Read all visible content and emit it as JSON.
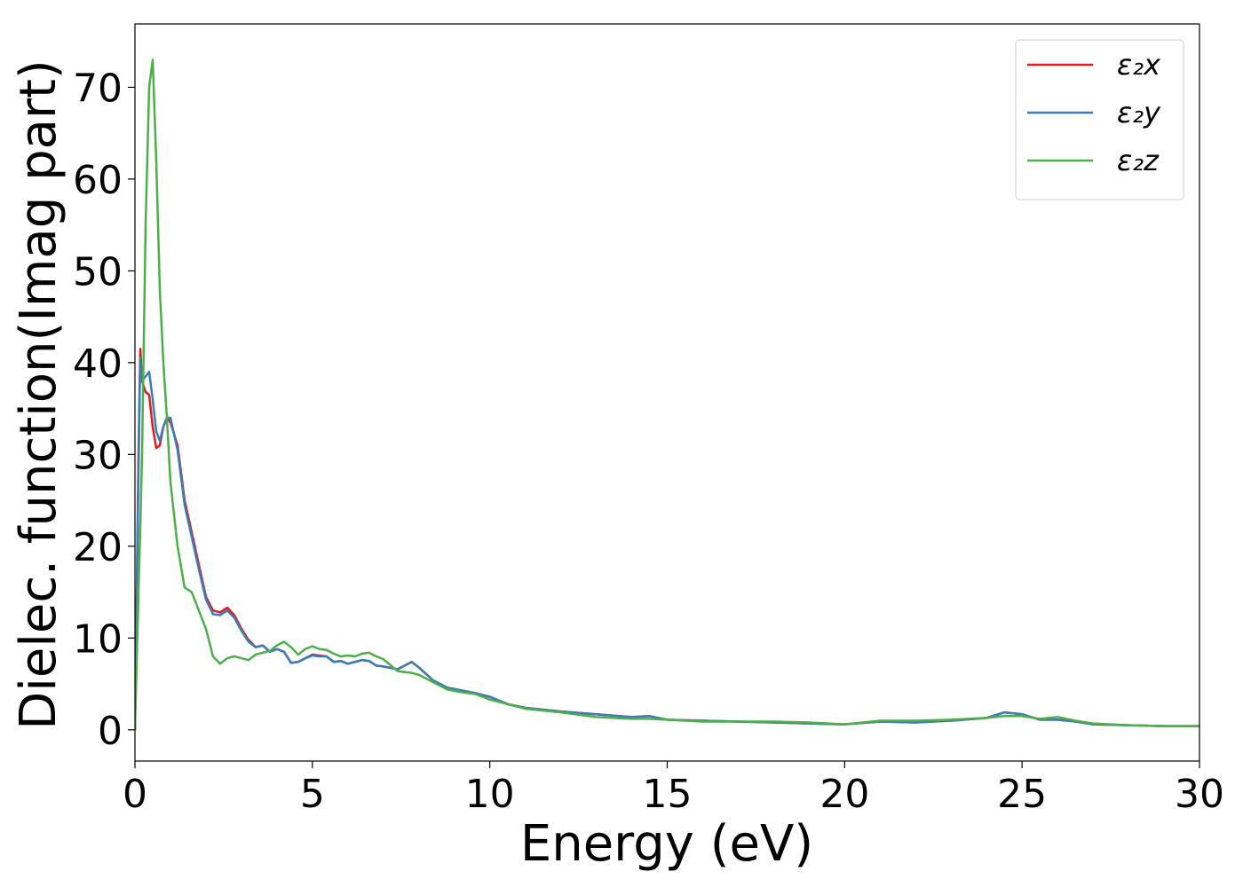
{
  "chart_data": {
    "type": "line",
    "xlabel": "Energy (eV)",
    "ylabel": "Dielec. function(Imag part)",
    "x": [
      0,
      0.1,
      0.15,
      0.2,
      0.3,
      0.4,
      0.5,
      0.6,
      0.7,
      0.8,
      0.9,
      1.0,
      1.2,
      1.4,
      1.6,
      1.8,
      2.0,
      2.2,
      2.4,
      2.6,
      2.8,
      3.0,
      3.2,
      3.4,
      3.6,
      3.8,
      4.0,
      4.2,
      4.4,
      4.6,
      4.8,
      5.0,
      5.2,
      5.4,
      5.6,
      5.8,
      6.0,
      6.2,
      6.4,
      6.6,
      6.8,
      7.0,
      7.4,
      7.8,
      8.0,
      8.4,
      8.8,
      9.2,
      9.6,
      10,
      10.5,
      11,
      12,
      13,
      14,
      14.5,
      15,
      16,
      17,
      18,
      19,
      20,
      21,
      22,
      23,
      24,
      24.5,
      25,
      25.5,
      26,
      26.5,
      27,
      28,
      29,
      30
    ],
    "series": [
      {
        "name": "ε₂x",
        "color": "#e41a1c",
        "values": [
          0,
          30,
          41.5,
          38,
          36.8,
          36.5,
          33,
          30.7,
          31,
          33,
          34,
          33.5,
          31,
          25,
          21.5,
          18,
          14.5,
          13,
          12.8,
          13.3,
          12.5,
          11,
          9.8,
          9,
          9.2,
          8.5,
          8.8,
          8.5,
          7.3,
          7.4,
          7.8,
          8.2,
          8.1,
          8,
          7.4,
          7.5,
          7.2,
          7.4,
          7.6,
          7.5,
          7.0,
          6.9,
          6.6,
          7.4,
          6.8,
          5.4,
          4.6,
          4.3,
          4.0,
          3.6,
          2.8,
          2.4,
          2.0,
          1.7,
          1.4,
          1.5,
          1.1,
          1.0,
          0.9,
          0.8,
          0.7,
          0.6,
          0.9,
          0.8,
          1.0,
          1.3,
          1.9,
          1.7,
          1.1,
          1.1,
          0.9,
          0.6,
          0.5,
          0.4,
          0.4
        ]
      },
      {
        "name": "ε₂y",
        "color": "#377eb8",
        "values": [
          0,
          28,
          40.5,
          38,
          38.5,
          39,
          36,
          32.5,
          31.5,
          33,
          34,
          34,
          30.5,
          24.5,
          21,
          17.5,
          14.2,
          12.6,
          12.5,
          13.0,
          12.2,
          10.8,
          9.6,
          9,
          9.2,
          8.5,
          8.8,
          8.5,
          7.3,
          7.4,
          7.8,
          8.1,
          8.0,
          8,
          7.4,
          7.5,
          7.2,
          7.4,
          7.6,
          7.5,
          7.0,
          6.9,
          6.6,
          7.4,
          6.8,
          5.4,
          4.6,
          4.3,
          4.0,
          3.6,
          2.8,
          2.4,
          2.0,
          1.7,
          1.4,
          1.5,
          1.1,
          1.0,
          0.9,
          0.8,
          0.7,
          0.6,
          0.9,
          0.8,
          1.0,
          1.3,
          1.9,
          1.7,
          1.1,
          1.1,
          0.9,
          0.6,
          0.5,
          0.4,
          0.4
        ]
      },
      {
        "name": "ε₂z",
        "color": "#4daf4a",
        "values": [
          0,
          15,
          22,
          30,
          55,
          70,
          73,
          62,
          48,
          40,
          34,
          27,
          20,
          15.5,
          15,
          13,
          11,
          8,
          7.2,
          7.8,
          8.0,
          7.8,
          7.6,
          8.2,
          8.4,
          8.6,
          9.2,
          9.6,
          9.0,
          8.2,
          8.8,
          9.1,
          8.8,
          8.7,
          8.3,
          8.0,
          8.1,
          8.0,
          8.3,
          8.4,
          8.0,
          7.7,
          6.4,
          6.2,
          6.0,
          5.2,
          4.4,
          4.1,
          3.9,
          3.3,
          2.8,
          2.3,
          1.9,
          1.4,
          1.2,
          1.2,
          1.1,
          0.9,
          0.9,
          0.9,
          0.8,
          0.6,
          1.0,
          1.0,
          1.1,
          1.3,
          1.5,
          1.5,
          1.2,
          1.4,
          1.0,
          0.7,
          0.5,
          0.4,
          0.4
        ]
      }
    ],
    "xlim": [
      0,
      30
    ],
    "xticks": [
      0,
      5,
      10,
      15,
      20,
      25,
      30
    ],
    "ylim": [
      -3.4,
      76.9
    ],
    "yticks": [
      0,
      10,
      20,
      30,
      40,
      50,
      60,
      70
    ],
    "grid": false,
    "legend": "upper right"
  }
}
